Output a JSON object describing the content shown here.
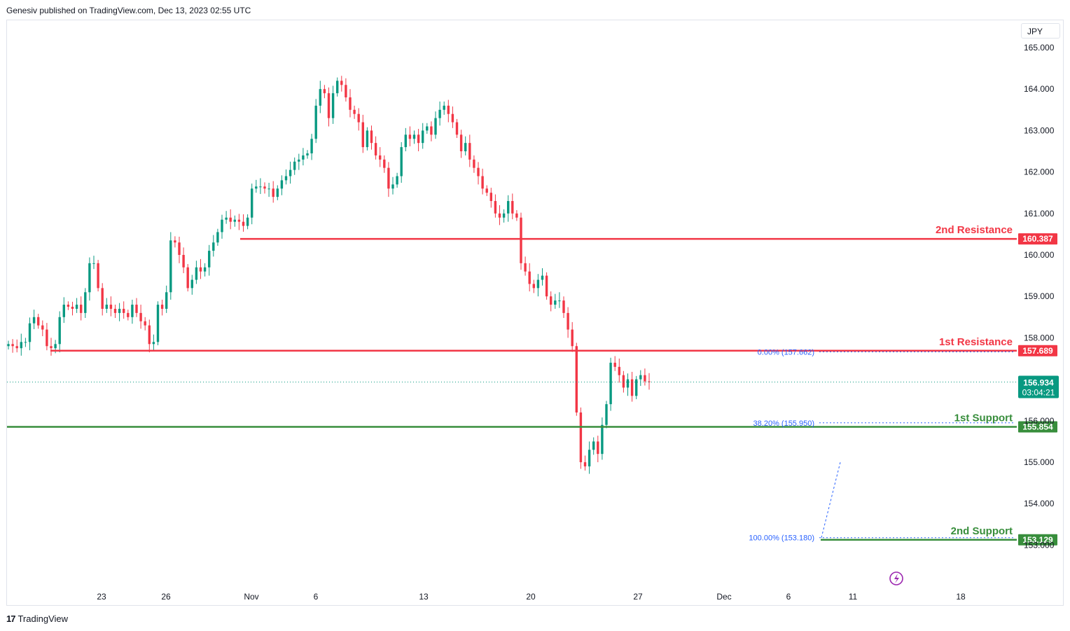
{
  "header": {
    "published_text": "Genesiv published on TradingView.com, Dec 13, 2023 02:55 UTC"
  },
  "footer": {
    "brand": "TradingView",
    "logo_text": "17"
  },
  "toolbar": {
    "currency_label": "JPY"
  },
  "colors": {
    "up": "#089981",
    "down": "#f23645",
    "resistance": "#f23645",
    "support": "#388e3c",
    "fib": "#2962ff"
  },
  "chart_data": {
    "type": "candlestick",
    "symbol_currency": "JPY",
    "y_axis": {
      "ticks": [
        "165.000",
        "164.000",
        "163.000",
        "162.000",
        "161.000",
        "160.000",
        "159.000",
        "158.000",
        "156.000",
        "155.000",
        "154.000",
        "153.000"
      ],
      "range": [
        152.9,
        165.4
      ]
    },
    "x_axis": {
      "ticks": [
        "23",
        "26",
        "Nov",
        "6",
        "13",
        "20",
        "27",
        "Dec",
        "6",
        "11",
        "18"
      ]
    },
    "last_price": {
      "value": "156.934",
      "countdown": "03:04:21"
    },
    "levels": [
      {
        "name": "2nd Resistance",
        "value": 160.387,
        "label": "160.387",
        "kind": "resistance"
      },
      {
        "name": "1st Resistance",
        "value": 157.689,
        "label": "157.689",
        "kind": "resistance"
      },
      {
        "name": "1st Support",
        "value": 155.854,
        "label": "155.854",
        "kind": "support"
      },
      {
        "name": "2nd Support",
        "value": 153.129,
        "label": "153.129",
        "kind": "support"
      }
    ],
    "fib_levels": [
      {
        "label": "0.00% (157.662)",
        "value": 157.662
      },
      {
        "label": "38.20% (155.950)",
        "value": 155.95
      },
      {
        "label": "100.00% (153.180)",
        "value": 153.18
      }
    ],
    "closes": [
      157.85,
      157.8,
      157.75,
      157.9,
      157.9,
      158.35,
      158.5,
      158.3,
      158.2,
      157.8,
      157.75,
      157.85,
      158.5,
      158.8,
      158.75,
      158.7,
      158.8,
      158.6,
      159.1,
      159.8,
      159.8,
      159.2,
      158.7,
      158.8,
      158.7,
      158.6,
      158.7,
      158.6,
      158.5,
      158.8,
      158.6,
      158.4,
      158.3,
      157.85,
      157.9,
      158.8,
      158.7,
      159.1,
      160.35,
      160.3,
      160.0,
      159.7,
      159.2,
      159.4,
      159.7,
      159.6,
      159.7,
      160.1,
      160.3,
      160.55,
      160.85,
      160.9,
      160.8,
      160.85,
      160.8,
      160.7,
      160.9,
      161.6,
      161.65,
      161.65,
      161.6,
      161.6,
      161.4,
      161.6,
      161.8,
      161.9,
      162.05,
      162.25,
      162.3,
      162.4,
      162.45,
      162.8,
      163.6,
      164.0,
      163.9,
      163.3,
      163.9,
      164.2,
      164.1,
      163.8,
      163.5,
      163.4,
      163.2,
      162.6,
      163.0,
      162.7,
      162.4,
      162.3,
      162.1,
      161.6,
      161.7,
      161.9,
      162.6,
      162.9,
      162.8,
      162.9,
      162.7,
      163.0,
      163.1,
      162.9,
      163.3,
      163.5,
      163.6,
      163.4,
      163.2,
      162.9,
      162.5,
      162.7,
      162.3,
      162.1,
      161.9,
      161.6,
      161.5,
      161.3,
      161.0,
      160.9,
      161.0,
      161.3,
      161.0,
      160.9,
      159.8,
      159.6,
      159.3,
      159.2,
      159.4,
      159.5,
      159.0,
      158.8,
      158.9,
      158.9,
      158.6,
      158.2,
      157.8,
      156.2,
      155.0,
      154.9,
      155.3,
      155.5,
      155.2,
      155.9,
      156.4,
      157.4,
      157.3,
      157.1,
      156.8,
      157.0,
      156.6,
      157.0,
      157.1,
      156.95,
      156.93
    ],
    "series_stats": {
      "high": 164.3,
      "low": 153.13
    }
  }
}
